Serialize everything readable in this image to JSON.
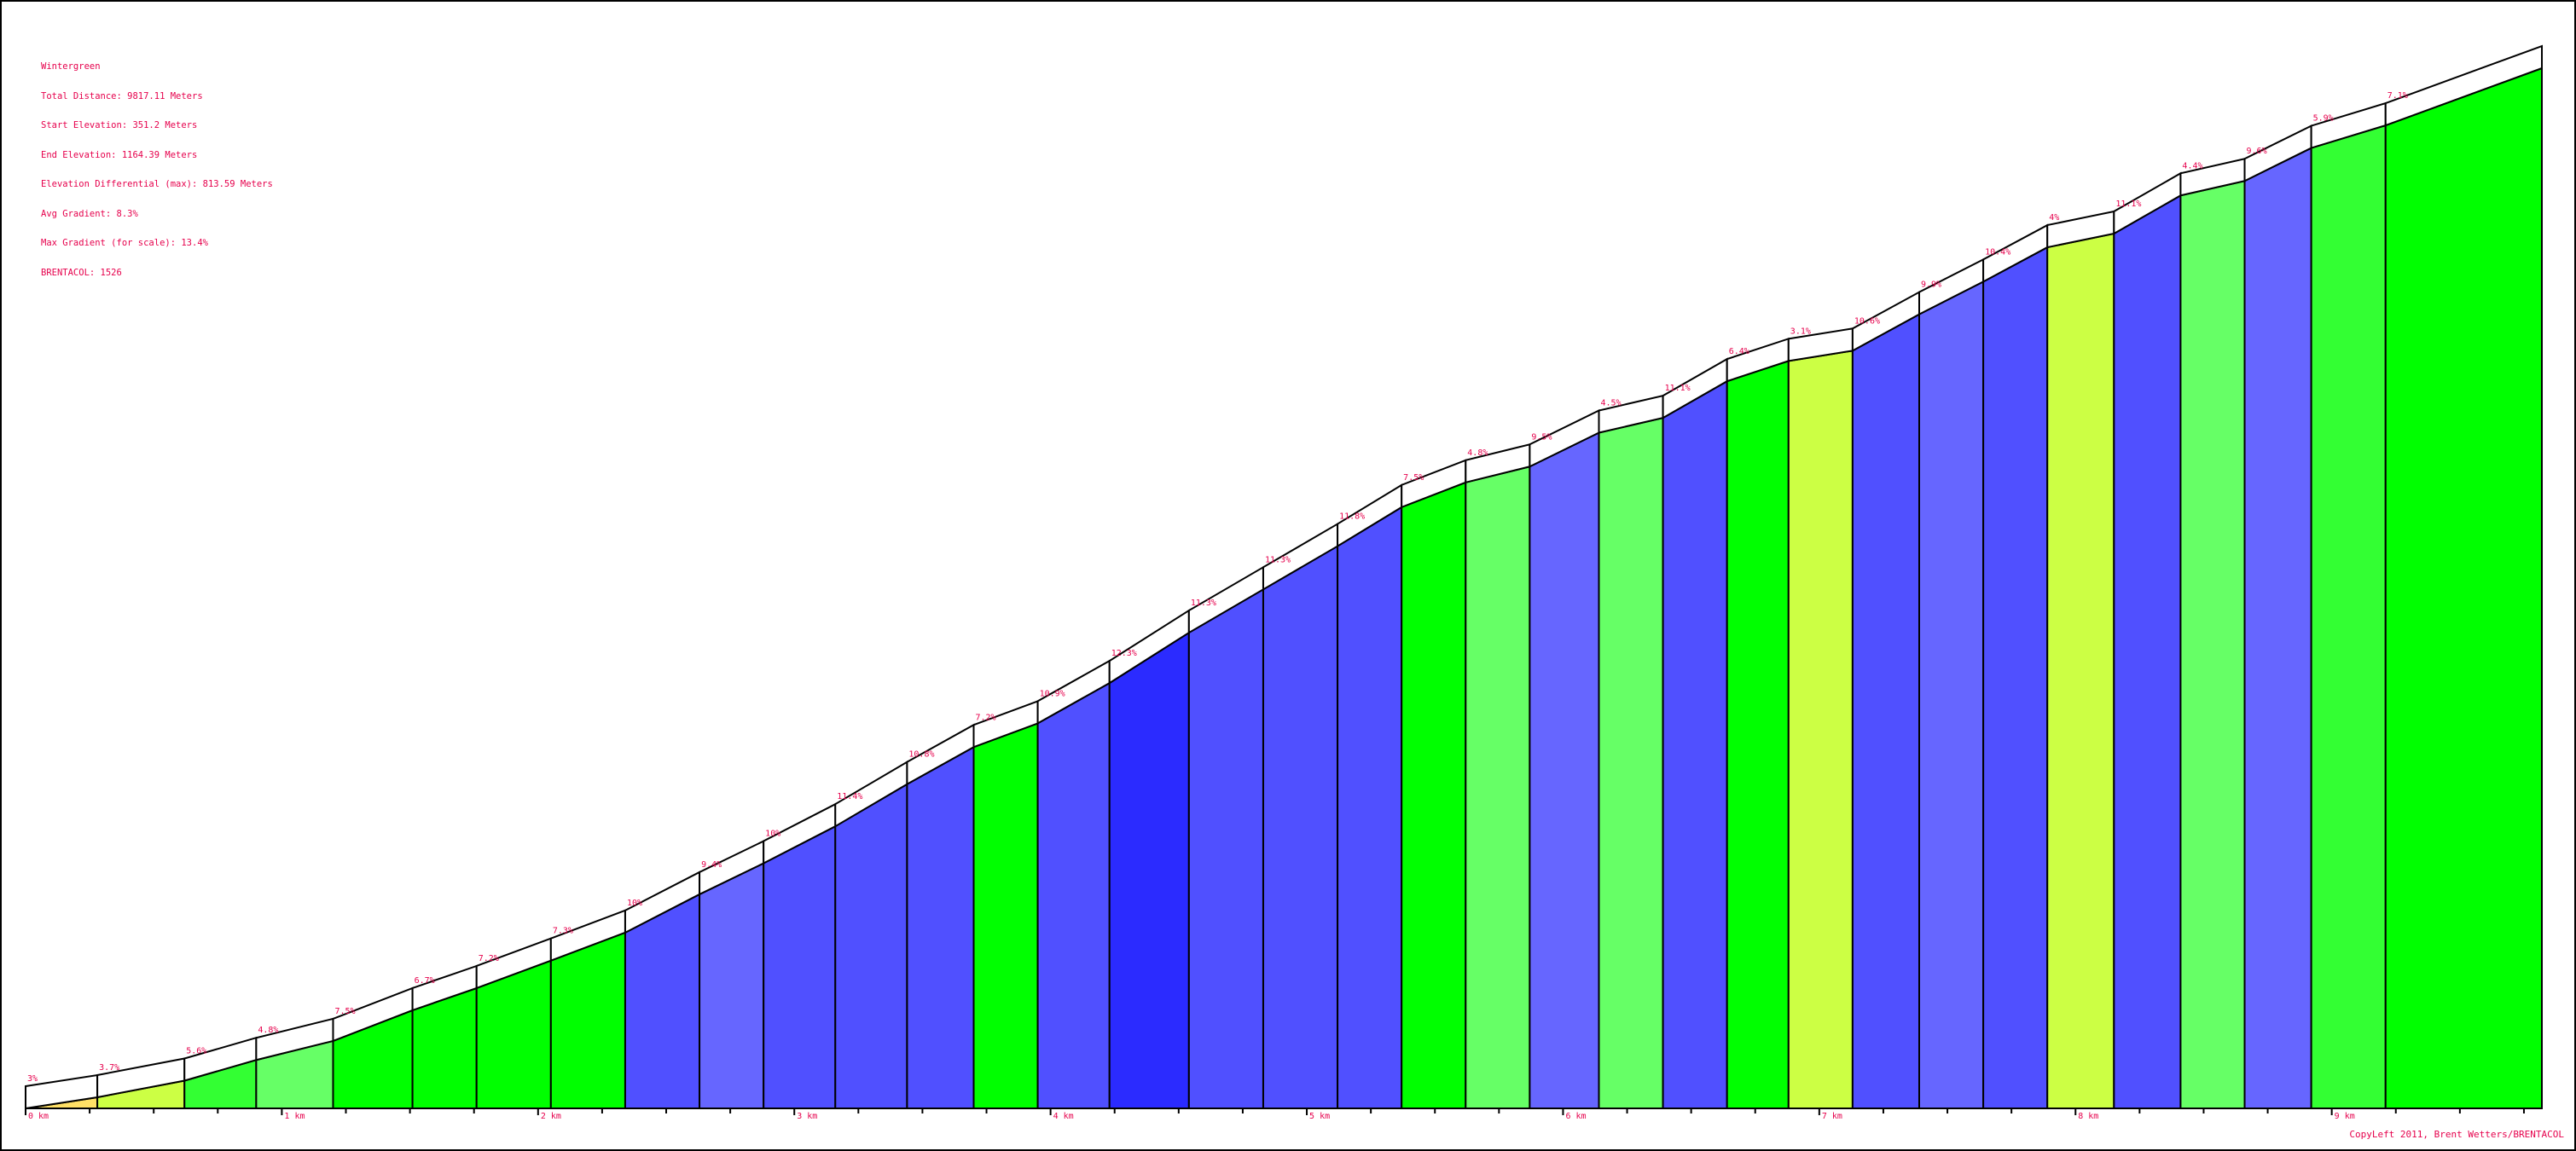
{
  "info": {
    "name": "Wintergreen",
    "total_distance": "Total Distance: 9817.11 Meters",
    "start_elevation": "Start Elevation: 351.2 Meters",
    "end_elevation": "End Elevation: 1164.39 Meters",
    "elevation_differential": "Elevation Differential (max): 813.59 Meters",
    "avg_gradient": "Avg Gradient: 8.3%",
    "max_gradient": "Max Gradient (for scale): 13.4%",
    "brentacol": "BRENTACOL: 1526"
  },
  "copyleft": "CopyLeft 2011, Brent Wetters/BRENTACOL",
  "colors": {
    "label": "#e6004c",
    "outline": "#000000",
    "band": "#ffffff"
  },
  "chart_data": {
    "type": "area",
    "xlabel": "",
    "ylabel": "",
    "x_ticks": [
      "0 km",
      "1 km",
      "2 km",
      "3 km",
      "4 km",
      "5 km",
      "6 km",
      "7 km",
      "8 km",
      "9 km"
    ],
    "xlim": [
      0,
      9.82
    ],
    "ylim": [
      351.2,
      1164.39
    ],
    "km_boundaries": [
      0,
      0.28,
      0.62,
      0.9,
      1.2,
      1.51,
      1.76,
      2.05,
      2.34,
      2.63,
      2.88,
      3.16,
      3.44,
      3.7,
      3.95,
      4.23,
      4.54,
      4.83,
      5.12,
      5.37,
      5.62,
      5.87,
      6.14,
      6.39,
      6.64,
      6.88,
      7.13,
      7.39,
      7.64,
      7.89,
      8.15,
      8.41,
      8.66,
      8.92,
      9.21,
      9.82
    ],
    "segments": [
      {
        "gradient": "3%",
        "color": "#ffe066"
      },
      {
        "gradient": "3.7%",
        "color": "#ccff44"
      },
      {
        "gradient": "5.6%",
        "color": "#33ff33"
      },
      {
        "gradient": "4.8%",
        "color": "#66ff66"
      },
      {
        "gradient": "7.5%",
        "color": "#00ff00"
      },
      {
        "gradient": "6.7%",
        "color": "#00ff00"
      },
      {
        "gradient": "7.2%",
        "color": "#00ff00"
      },
      {
        "gradient": "7.3%",
        "color": "#00ff00"
      },
      {
        "gradient": "10%",
        "color": "#5050ff"
      },
      {
        "gradient": "9.4%",
        "color": "#6666ff"
      },
      {
        "gradient": "10%",
        "color": "#5050ff"
      },
      {
        "gradient": "11.4%",
        "color": "#5050ff"
      },
      {
        "gradient": "10.8%",
        "color": "#5050ff"
      },
      {
        "gradient": "7.2%",
        "color": "#00ff00"
      },
      {
        "gradient": "10.9%",
        "color": "#5050ff"
      },
      {
        "gradient": "12.3%",
        "color": "#2b2bff"
      },
      {
        "gradient": "11.3%",
        "color": "#5050ff"
      },
      {
        "gradient": "11.3%",
        "color": "#5050ff"
      },
      {
        "gradient": "11.8%",
        "color": "#5050ff"
      },
      {
        "gradient": "7.5%",
        "color": "#00ff00"
      },
      {
        "gradient": "4.8%",
        "color": "#66ff66"
      },
      {
        "gradient": "9.5%",
        "color": "#6666ff"
      },
      {
        "gradient": "4.5%",
        "color": "#66ff66"
      },
      {
        "gradient": "11.1%",
        "color": "#5050ff"
      },
      {
        "gradient": "6.4%",
        "color": "#00ff00"
      },
      {
        "gradient": "3.1%",
        "color": "#ccff44"
      },
      {
        "gradient": "10.6%",
        "color": "#5050ff"
      },
      {
        "gradient": "9.9%",
        "color": "#6666ff"
      },
      {
        "gradient": "10.4%",
        "color": "#5050ff"
      },
      {
        "gradient": "4%",
        "color": "#ccff44"
      },
      {
        "gradient": "11.1%",
        "color": "#5050ff"
      },
      {
        "gradient": "4.4%",
        "color": "#66ff66"
      },
      {
        "gradient": "9.6%",
        "color": "#6666ff"
      },
      {
        "gradient": "5.9%",
        "color": "#33ff33"
      },
      {
        "gradient": "7.1%",
        "color": "#00ff00"
      }
    ]
  }
}
